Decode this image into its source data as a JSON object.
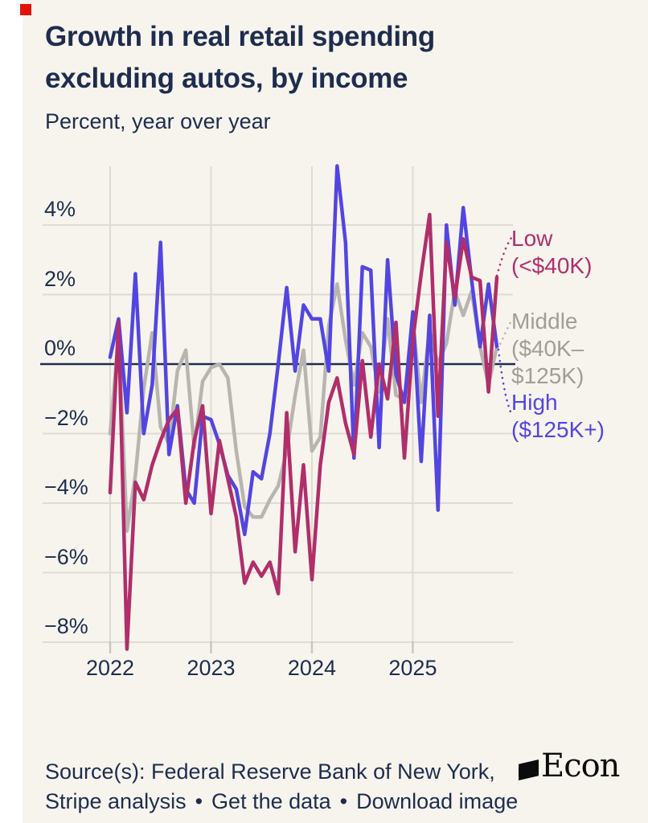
{
  "header": {
    "title_line1": "Growth in real retail spending",
    "title_line2": "excluding autos, by income",
    "subtitle": "Percent, year over year"
  },
  "brand_mark": {
    "color": "#e3120b"
  },
  "legend": [
    {
      "id": "low",
      "lines": [
        "Low",
        "(<$40K)"
      ],
      "color": "#b02e6a"
    },
    {
      "id": "middle",
      "lines": [
        "Middle",
        "($40K–",
        "$125K)"
      ],
      "color": "#a19d99"
    },
    {
      "id": "high",
      "lines": [
        "High",
        "($125K+)"
      ],
      "color": "#5345e0"
    }
  ],
  "source": {
    "line1": "Source(s): Federal Reserve Bank of New York,",
    "line2_parts": [
      "Stripe analysis",
      "Get the data",
      "Download image"
    ],
    "bullet": "•"
  },
  "logo": {
    "text": "Econ"
  },
  "colors": {
    "background": "#f6f4ed",
    "text_navy": "#1e2c4e",
    "gridline": "#dedbd4",
    "zero_line": "#1e2c4e",
    "tick": "#c8c5bf"
  },
  "chart_data": {
    "type": "line",
    "title": "Growth in real retail spending excluding autos, by income",
    "ylabel": "Percent, year over year",
    "x_axis": {
      "tick_labels": [
        "2022",
        "2023",
        "2024",
        "2025"
      ],
      "start": "2022-01",
      "end": "2025-11",
      "frequency": "monthly",
      "n_points": 47
    },
    "y_axis": {
      "ticks": [
        {
          "label": "4%",
          "v": 4
        },
        {
          "label": "2%",
          "v": 2
        },
        {
          "label": "0%",
          "v": 0
        },
        {
          "label": "−2%",
          "v": -2
        },
        {
          "label": "−4%",
          "v": -4
        },
        {
          "label": "−6%",
          "v": -6
        },
        {
          "label": "−8%",
          "v": -8
        }
      ],
      "ylim": [
        -8.6,
        5.9
      ],
      "zero_line": true,
      "grid": true
    },
    "legend_position": "right",
    "series": [
      {
        "name": "Low (<$40K)",
        "color": "#b02e6a",
        "values": [
          -3.7,
          1.2,
          -8.2,
          -3.4,
          -3.9,
          -2.9,
          -2.2,
          -1.6,
          -1.3,
          -4.0,
          -2.2,
          -1.2,
          -4.3,
          -2.2,
          -3.3,
          -4.4,
          -6.3,
          -5.7,
          -6.1,
          -5.7,
          -6.6,
          -1.4,
          -5.4,
          -2.9,
          -6.2,
          -2.9,
          -1.1,
          -0.4,
          -1.7,
          -2.6,
          0.1,
          -2.1,
          0.0,
          -1.0,
          1.2,
          -2.7,
          0.7,
          2.6,
          4.3,
          -1.5,
          3.5,
          1.9,
          3.6,
          2.5,
          2.4,
          -0.8,
          2.5
        ]
      },
      {
        "name": "Middle ($40K–$125K)",
        "color": "#b8b5b1",
        "values": [
          -2.0,
          0.8,
          -4.8,
          -3.2,
          -0.7,
          0.9,
          -1.8,
          -2.3,
          -0.2,
          0.4,
          -2.4,
          -0.5,
          -0.1,
          0.0,
          -0.4,
          -2.5,
          -4.1,
          -4.4,
          -4.4,
          -3.9,
          -3.5,
          -2.5,
          -0.9,
          0.4,
          -2.5,
          -2.1,
          1.1,
          2.3,
          0.7,
          -0.6,
          0.9,
          0.5,
          -0.8,
          1.3,
          -0.9,
          -1.0,
          1.2,
          -1.1,
          1.0,
          0.0,
          0.6,
          2.1,
          1.4,
          2.1,
          0.5,
          -0.6,
          0.5
        ]
      },
      {
        "name": "High ($125K+)",
        "color": "#5345e0",
        "values": [
          0.2,
          1.3,
          -1.4,
          2.6,
          -2.0,
          -0.6,
          3.5,
          -2.6,
          -1.2,
          -3.6,
          -4.0,
          -1.5,
          -1.6,
          -2.3,
          -3.2,
          -3.6,
          -4.9,
          -3.1,
          -3.3,
          -2.0,
          0.0,
          2.2,
          -0.2,
          1.7,
          1.3,
          1.3,
          -0.2,
          5.7,
          3.5,
          -2.7,
          2.8,
          2.7,
          -2.4,
          3.0,
          -0.3,
          -1.1,
          1.5,
          -2.8,
          1.4,
          -4.2,
          4.0,
          1.7,
          4.5,
          2.4,
          0.5,
          2.3,
          0.5
        ]
      }
    ]
  }
}
